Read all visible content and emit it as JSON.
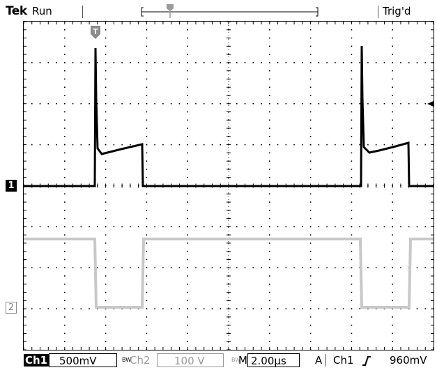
{
  "header": {
    "brand": "Tek",
    "run_state": "Run",
    "trigger_status": "Trig'd"
  },
  "markers": {
    "trigger": "T",
    "ch1": "1",
    "ch2": "2"
  },
  "status": {
    "ch1_label": "Ch1",
    "ch1_scale": "500mV",
    "bw_flag": "BW",
    "ch2_label": "Ch2",
    "ch2_scale": "100 V",
    "timebase_prefix": "M",
    "timebase": "2.00µs",
    "trigger_mode": "A",
    "trigger_source": "Ch1",
    "trigger_slope": "rising-edge-icon",
    "trigger_level": "960mV"
  },
  "colors": {
    "ch1_trace": "#000000",
    "ch2_trace": "#c8c8c8",
    "grid": "#000000"
  }
}
